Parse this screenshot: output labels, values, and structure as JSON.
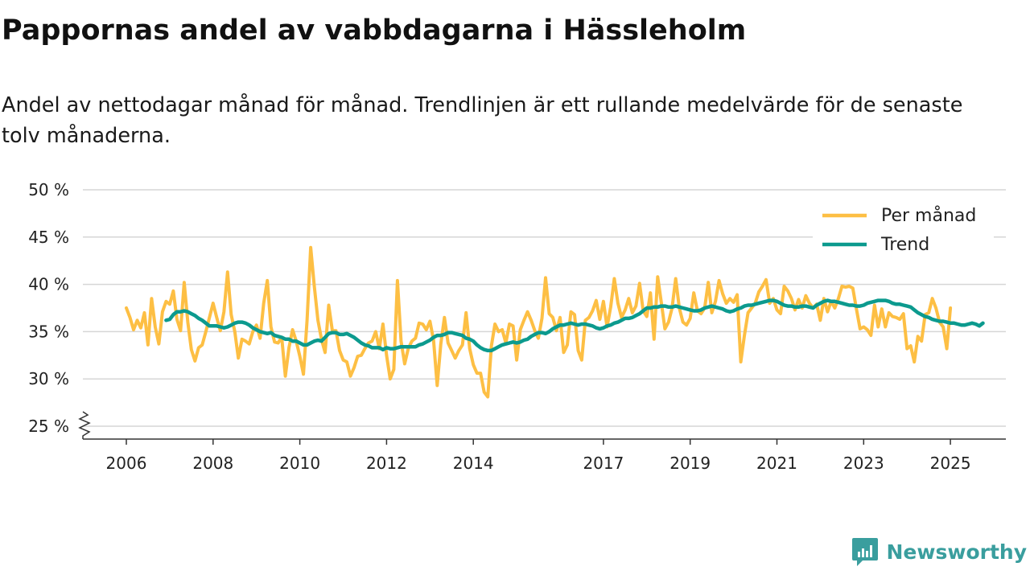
{
  "chart_data": {
    "type": "line",
    "title": "Pappornas andel av vabbdagarna i Hässleholm",
    "subtitle": "Andel av nettodagar månad för månad. Trendlinjen är ett rullande medelvärde för de senaste tolv månaderna.",
    "ylim": [
      25,
      50
    ],
    "yticks": [
      25,
      30,
      35,
      40,
      45,
      50
    ],
    "ytick_labels": [
      "25 %",
      "30 %",
      "35 %",
      "40 %",
      "45 %",
      "50 %"
    ],
    "xticks": [
      2006,
      2008,
      2010,
      2012,
      2014,
      2017,
      2019,
      2021,
      2023,
      2025
    ],
    "xtick_labels": [
      "2006",
      "2008",
      "2010",
      "2012",
      "2014",
      "2017",
      "2019",
      "2021",
      "2023",
      "2025"
    ],
    "axis_break": true,
    "legend_position": "top-right",
    "series": [
      {
        "name": "Per månad",
        "color": "#fdbf44",
        "start": "2006-01",
        "values": [
          37.5,
          36.5,
          35.2,
          36.2,
          35.4,
          37.0,
          33.6,
          38.5,
          35.5,
          33.7,
          37.1,
          38.2,
          37.9,
          39.3,
          36.3,
          35.1,
          40.2,
          36.0,
          33.1,
          31.9,
          33.3,
          33.6,
          35.0,
          36.5,
          38.0,
          36.5,
          35.1,
          37.1,
          41.3,
          36.8,
          35.0,
          32.2,
          34.2,
          34.0,
          33.7,
          35.0,
          35.7,
          34.3,
          38.0,
          40.4,
          35.5,
          33.9,
          33.8,
          34.4,
          30.3,
          33.3,
          35.2,
          34.0,
          32.4,
          30.5,
          36.2,
          43.9,
          39.8,
          36.2,
          34.2,
          32.8,
          37.8,
          35.1,
          35.1,
          33.0,
          32.0,
          31.8,
          30.3,
          31.2,
          32.4,
          32.5,
          33.2,
          33.8,
          34.0,
          35.0,
          33.2,
          35.8,
          32.5,
          30.0,
          31.0,
          40.4,
          34.0,
          31.6,
          33.2,
          34.0,
          34.3,
          35.9,
          35.8,
          35.2,
          36.1,
          34.1,
          29.3,
          33.7,
          36.5,
          33.8,
          33.0,
          32.2,
          33.0,
          33.6,
          37.0,
          33.2,
          31.5,
          30.6,
          30.6,
          28.6,
          28.1,
          33.5,
          35.8,
          35.0,
          35.2,
          33.8,
          35.8,
          35.6,
          32.0,
          35.2,
          36.2,
          37.1,
          36.2,
          35.1,
          34.3,
          36.4,
          40.7,
          36.9,
          36.5,
          35.1,
          36.5,
          32.8,
          33.6,
          37.1,
          36.8,
          33.0,
          32.0,
          36.2,
          36.5,
          37.2,
          38.3,
          36.3,
          38.2,
          35.5,
          37.6,
          40.6,
          38.0,
          36.5,
          37.3,
          38.5,
          37.0,
          37.7,
          40.1,
          37.2,
          36.6,
          39.1,
          34.2,
          40.8,
          38.1,
          35.3,
          36.0,
          37.5,
          40.6,
          37.5,
          36.0,
          35.7,
          36.4,
          39.1,
          37.2,
          36.9,
          37.5,
          40.2,
          37.0,
          38.2,
          40.4,
          39.0,
          38.0,
          38.5,
          38.1,
          38.9,
          31.8,
          34.6,
          37.0,
          37.5,
          38.0,
          39.2,
          39.8,
          40.5,
          38.0,
          38.5,
          37.3,
          36.9,
          39.8,
          39.3,
          38.5,
          37.3,
          38.4,
          37.5,
          38.8,
          38.0,
          37.5,
          37.9,
          36.2,
          38.5,
          37.1,
          38.2,
          37.5,
          38.5,
          39.8,
          39.7,
          39.8,
          39.6,
          37.4,
          35.3,
          35.5,
          35.2,
          34.6,
          37.8,
          35.5,
          37.4,
          35.5,
          37.0,
          36.6,
          36.5,
          36.3,
          36.9,
          33.2,
          33.5,
          31.8,
          34.5,
          34.0,
          36.8,
          37.0,
          38.5,
          37.5,
          36.0,
          35.5,
          33.2,
          37.5
        ]
      },
      {
        "name": "Trend",
        "color": "#0c9a8e",
        "start": "2006-12",
        "values": [
          36.2,
          36.3,
          36.8,
          37.1,
          37.1,
          37.2,
          37.1,
          36.9,
          36.7,
          36.4,
          36.2,
          35.9,
          35.6,
          35.6,
          35.6,
          35.5,
          35.4,
          35.5,
          35.7,
          35.9,
          36.0,
          36.0,
          35.9,
          35.7,
          35.4,
          35.2,
          35.0,
          34.9,
          34.8,
          34.9,
          34.6,
          34.5,
          34.4,
          34.2,
          34.2,
          34.0,
          34.0,
          33.8,
          33.6,
          33.6,
          33.8,
          34.0,
          34.1,
          34.0,
          34.4,
          34.8,
          34.9,
          34.9,
          34.7,
          34.7,
          34.8,
          34.6,
          34.4,
          34.1,
          33.8,
          33.6,
          33.5,
          33.3,
          33.3,
          33.3,
          33.1,
          33.3,
          33.2,
          33.2,
          33.3,
          33.4,
          33.4,
          33.4,
          33.4,
          33.4,
          33.6,
          33.7,
          33.9,
          34.1,
          34.4,
          34.6,
          34.6,
          34.7,
          34.9,
          34.9,
          34.8,
          34.7,
          34.6,
          34.3,
          34.2,
          34.0,
          33.6,
          33.3,
          33.1,
          33.0,
          33.0,
          33.2,
          33.4,
          33.6,
          33.7,
          33.8,
          33.9,
          33.8,
          33.9,
          34.1,
          34.2,
          34.5,
          34.7,
          34.9,
          34.9,
          34.8,
          35.0,
          35.3,
          35.5,
          35.7,
          35.7,
          35.8,
          35.9,
          35.8,
          35.7,
          35.8,
          35.8,
          35.7,
          35.6,
          35.4,
          35.3,
          35.4,
          35.6,
          35.7,
          35.9,
          36.0,
          36.2,
          36.4,
          36.4,
          36.5,
          36.7,
          36.9,
          37.2,
          37.5,
          37.5,
          37.6,
          37.6,
          37.7,
          37.7,
          37.6,
          37.6,
          37.7,
          37.6,
          37.5,
          37.4,
          37.3,
          37.2,
          37.2,
          37.3,
          37.5,
          37.6,
          37.7,
          37.6,
          37.5,
          37.4,
          37.2,
          37.1,
          37.2,
          37.4,
          37.5,
          37.7,
          37.8,
          37.8,
          37.9,
          38.0,
          38.1,
          38.2,
          38.3,
          38.3,
          38.2,
          38.0,
          37.8,
          37.7,
          37.7,
          37.6,
          37.6,
          37.7,
          37.7,
          37.6,
          37.5,
          37.8,
          38.0,
          38.2,
          38.3,
          38.2,
          38.2,
          38.1,
          38.0,
          37.9,
          37.8,
          37.8,
          37.7,
          37.7,
          37.8,
          38.0,
          38.1,
          38.2,
          38.3,
          38.3,
          38.3,
          38.2,
          38.0,
          37.9,
          37.9,
          37.8,
          37.7,
          37.6,
          37.3,
          37.0,
          36.8,
          36.6,
          36.5,
          36.3,
          36.2,
          36.1,
          36.1,
          36.0,
          35.9,
          35.9,
          35.8,
          35.7,
          35.7,
          35.8,
          35.9,
          35.8,
          35.6,
          35.9
        ]
      }
    ]
  },
  "brand": {
    "name": "Newsworthy",
    "icon": "newsworthy-logo-icon"
  }
}
